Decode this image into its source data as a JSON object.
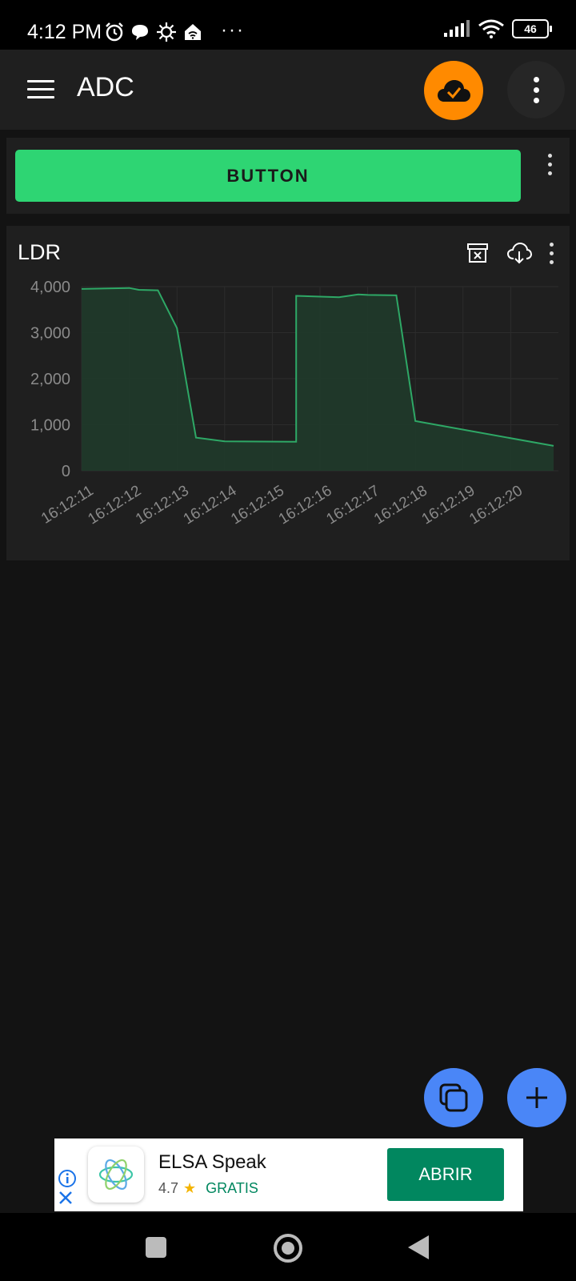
{
  "status_bar": {
    "time": "4:12 PM",
    "battery": "46",
    "overflow": "···",
    "icons": [
      "alarm-icon",
      "chat-icon",
      "settings-icon",
      "home-wifi-icon",
      "signal-icon",
      "wifi-icon",
      "battery-icon"
    ]
  },
  "app_bar": {
    "title": "ADC",
    "cloud_status_color": "#ff8a00"
  },
  "button_widget": {
    "label": "BUTTON",
    "color": "#2ed573"
  },
  "chart_widget": {
    "title": "LDR",
    "actions": [
      "archive-clear-icon",
      "cloud-download-icon",
      "more-vert-icon"
    ]
  },
  "chart_data": {
    "type": "area",
    "x": [
      "16:12:11.0",
      "16:12:12.0",
      "16:12:12.2",
      "16:12:12.6",
      "16:12:13.0",
      "16:12:13.4",
      "16:12:14.0",
      "16:12:15.5",
      "16:12:15.5",
      "16:12:16.4",
      "16:12:16.8",
      "16:12:17.0",
      "16:12:17.6",
      "16:12:18.0",
      "16:12:20.9"
    ],
    "values": [
      3950,
      3970,
      3930,
      3920,
      3100,
      720,
      640,
      630,
      3800,
      3770,
      3830,
      3820,
      3810,
      1080,
      540
    ],
    "tick_labels": [
      "16:12:11",
      "16:12:12",
      "16:12:13",
      "16:12:14",
      "16:12:15",
      "16:12:16",
      "16:12:17",
      "16:12:18",
      "16:12:19",
      "16:12:20"
    ],
    "y_ticks": [
      "4,000",
      "3,000",
      "2,000",
      "1,000",
      "0"
    ],
    "ylim": [
      0,
      4000
    ],
    "grid": true,
    "line_color": "#2ea866",
    "fill_color": "#1f3a2a"
  },
  "fabs": {
    "copy": "copy-icon",
    "add": "add-icon",
    "color": "#4a86f7"
  },
  "ad": {
    "app_name": "ELSA Speak",
    "rating": "4.7",
    "price": "GRATIS",
    "cta": "ABRIR"
  }
}
